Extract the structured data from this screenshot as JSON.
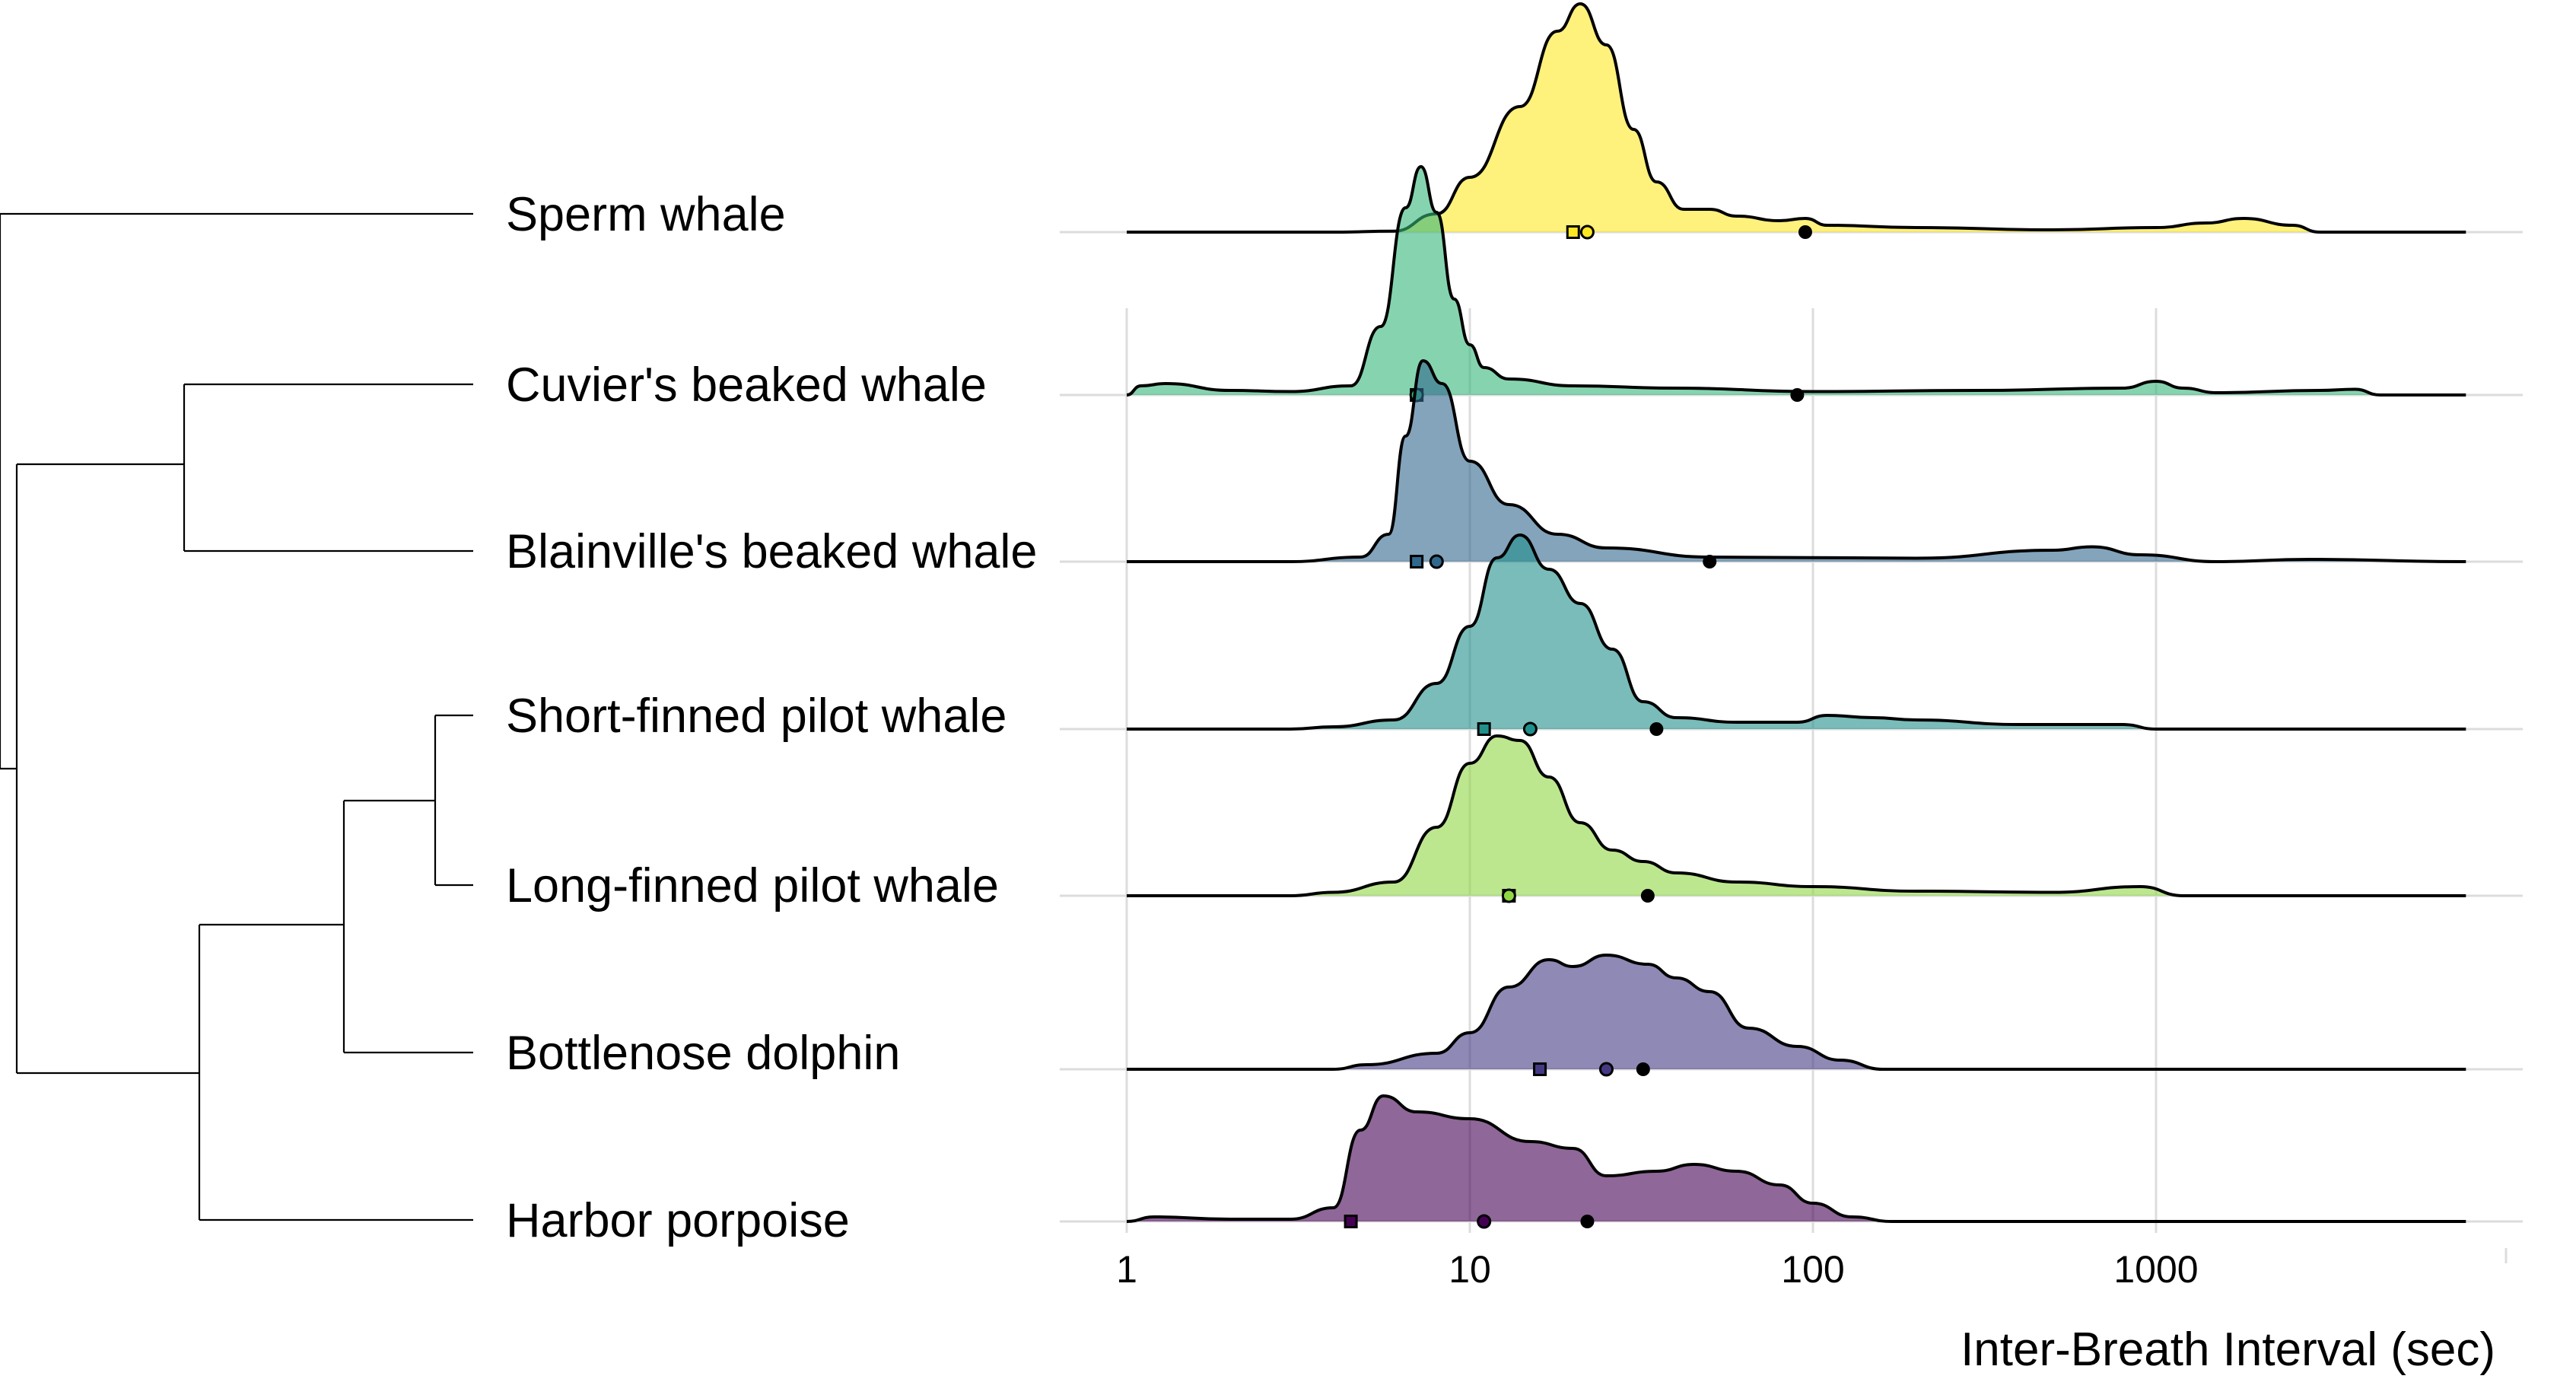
{
  "chart_data": {
    "type": "ridgeline",
    "xlabel": "Inter-Breath Interval (sec)",
    "x_scale": "log10",
    "xlim": [
      1,
      8000
    ],
    "x_ticks": [
      {
        "value": 1,
        "label": "1"
      },
      {
        "value": 10,
        "label": "10"
      },
      {
        "value": 100,
        "label": "100"
      },
      {
        "value": 1000,
        "label": "1000"
      }
    ],
    "grid": true,
    "fill_opacity": 0.6,
    "markers": {
      "square": "median",
      "circle": "open circle statistic",
      "filled": "filled circle statistic"
    },
    "series": [
      {
        "name": "Sperm whale",
        "color": "#fde725",
        "square": 20,
        "circle": 22,
        "filled": 95,
        "density": [
          [
            1,
            0
          ],
          [
            4,
            0
          ],
          [
            6,
            0.004
          ],
          [
            8,
            0.08
          ],
          [
            10,
            0.24
          ],
          [
            14,
            0.55
          ],
          [
            18,
            0.88
          ],
          [
            21,
            1.0
          ],
          [
            25,
            0.82
          ],
          [
            30,
            0.45
          ],
          [
            35,
            0.22
          ],
          [
            42,
            0.1
          ],
          [
            50,
            0.1
          ],
          [
            60,
            0.07
          ],
          [
            80,
            0.05
          ],
          [
            95,
            0.06
          ],
          [
            110,
            0.03
          ],
          [
            200,
            0.02
          ],
          [
            500,
            0.01
          ],
          [
            1000,
            0.02
          ],
          [
            1400,
            0.04
          ],
          [
            1800,
            0.06
          ],
          [
            2500,
            0.03
          ],
          [
            3000,
            0.0
          ],
          [
            8000,
            0
          ]
        ]
      },
      {
        "name": "Cuvier's beaked whale",
        "color": "#35b779",
        "square": 7,
        "circle": 7,
        "filled": 90,
        "density": [
          [
            1,
            0
          ],
          [
            1.1,
            0.04
          ],
          [
            1.3,
            0.05
          ],
          [
            2,
            0.02
          ],
          [
            3,
            0.015
          ],
          [
            4.5,
            0.04
          ],
          [
            5.5,
            0.3
          ],
          [
            6.5,
            0.82
          ],
          [
            7.2,
            1.0
          ],
          [
            8,
            0.8
          ],
          [
            9,
            0.42
          ],
          [
            10,
            0.22
          ],
          [
            11,
            0.12
          ],
          [
            13,
            0.07
          ],
          [
            20,
            0.04
          ],
          [
            40,
            0.03
          ],
          [
            100,
            0.015
          ],
          [
            300,
            0.02
          ],
          [
            800,
            0.03
          ],
          [
            1000,
            0.06
          ],
          [
            1200,
            0.03
          ],
          [
            1500,
            0.01
          ],
          [
            3000,
            0.02
          ],
          [
            3800,
            0.025
          ],
          [
            4500,
            0.0
          ],
          [
            8000,
            0
          ]
        ]
      },
      {
        "name": "Blainville's beaked whale",
        "color": "#31688e",
        "square": 7,
        "circle": 8,
        "filled": 50,
        "density": [
          [
            1,
            0
          ],
          [
            3,
            0
          ],
          [
            4.8,
            0.02
          ],
          [
            5.8,
            0.12
          ],
          [
            6.5,
            0.55
          ],
          [
            7.3,
            0.88
          ],
          [
            8.3,
            0.78
          ],
          [
            10,
            0.44
          ],
          [
            13,
            0.25
          ],
          [
            18,
            0.12
          ],
          [
            25,
            0.06
          ],
          [
            50,
            0.02
          ],
          [
            200,
            0.015
          ],
          [
            500,
            0.05
          ],
          [
            650,
            0.065
          ],
          [
            900,
            0.03
          ],
          [
            1500,
            0.0
          ],
          [
            2800,
            0.01
          ],
          [
            8000,
            0
          ]
        ]
      },
      {
        "name": "Short-finned pilot whale",
        "color": "#21908c",
        "square": 11,
        "circle": 15,
        "filled": 35,
        "density": [
          [
            1,
            0
          ],
          [
            3,
            0
          ],
          [
            4,
            0.01
          ],
          [
            6,
            0.04
          ],
          [
            8,
            0.2
          ],
          [
            10,
            0.45
          ],
          [
            12,
            0.75
          ],
          [
            14,
            0.85
          ],
          [
            17,
            0.7
          ],
          [
            21,
            0.55
          ],
          [
            26,
            0.35
          ],
          [
            32,
            0.12
          ],
          [
            40,
            0.05
          ],
          [
            60,
            0.03
          ],
          [
            90,
            0.03
          ],
          [
            110,
            0.06
          ],
          [
            150,
            0.05
          ],
          [
            200,
            0.04
          ],
          [
            400,
            0.02
          ],
          [
            800,
            0.02
          ],
          [
            1000,
            0.0
          ],
          [
            8000,
            0
          ]
        ]
      },
      {
        "name": "Long-finned pilot whale",
        "color": "#8fd744",
        "square": 13,
        "circle": 13,
        "filled": 33,
        "density": [
          [
            1,
            0
          ],
          [
            3,
            0
          ],
          [
            4,
            0.015
          ],
          [
            6,
            0.06
          ],
          [
            8,
            0.3
          ],
          [
            10,
            0.58
          ],
          [
            12,
            0.7
          ],
          [
            14,
            0.68
          ],
          [
            17,
            0.52
          ],
          [
            21,
            0.32
          ],
          [
            26,
            0.2
          ],
          [
            32,
            0.15
          ],
          [
            40,
            0.1
          ],
          [
            60,
            0.06
          ],
          [
            100,
            0.04
          ],
          [
            200,
            0.02
          ],
          [
            500,
            0.015
          ],
          [
            900,
            0.04
          ],
          [
            1200,
            0.0
          ],
          [
            8000,
            0
          ]
        ]
      },
      {
        "name": "Bottlenose dolphin",
        "color": "#443a83",
        "square": 16,
        "circle": 25,
        "filled": 32,
        "density": [
          [
            1,
            0
          ],
          [
            4,
            0
          ],
          [
            5,
            0.02
          ],
          [
            8,
            0.07
          ],
          [
            10,
            0.16
          ],
          [
            13,
            0.36
          ],
          [
            17,
            0.48
          ],
          [
            20,
            0.45
          ],
          [
            25,
            0.5
          ],
          [
            33,
            0.46
          ],
          [
            40,
            0.4
          ],
          [
            50,
            0.34
          ],
          [
            65,
            0.18
          ],
          [
            90,
            0.1
          ],
          [
            120,
            0.04
          ],
          [
            160,
            0.0
          ],
          [
            8000,
            0
          ]
        ]
      },
      {
        "name": "Harbor porpoise",
        "color": "#440154",
        "square": 4.5,
        "circle": 11,
        "filled": 22,
        "density": [
          [
            1,
            0
          ],
          [
            1.2,
            0.02
          ],
          [
            2,
            0.01
          ],
          [
            3,
            0.01
          ],
          [
            4,
            0.06
          ],
          [
            4.8,
            0.4
          ],
          [
            5.6,
            0.55
          ],
          [
            7,
            0.48
          ],
          [
            10,
            0.45
          ],
          [
            15,
            0.35
          ],
          [
            20,
            0.32
          ],
          [
            25,
            0.2
          ],
          [
            35,
            0.22
          ],
          [
            45,
            0.25
          ],
          [
            60,
            0.22
          ],
          [
            80,
            0.16
          ],
          [
            100,
            0.08
          ],
          [
            130,
            0.02
          ],
          [
            170,
            0.0
          ],
          [
            8000,
            0
          ]
        ]
      }
    ]
  }
}
